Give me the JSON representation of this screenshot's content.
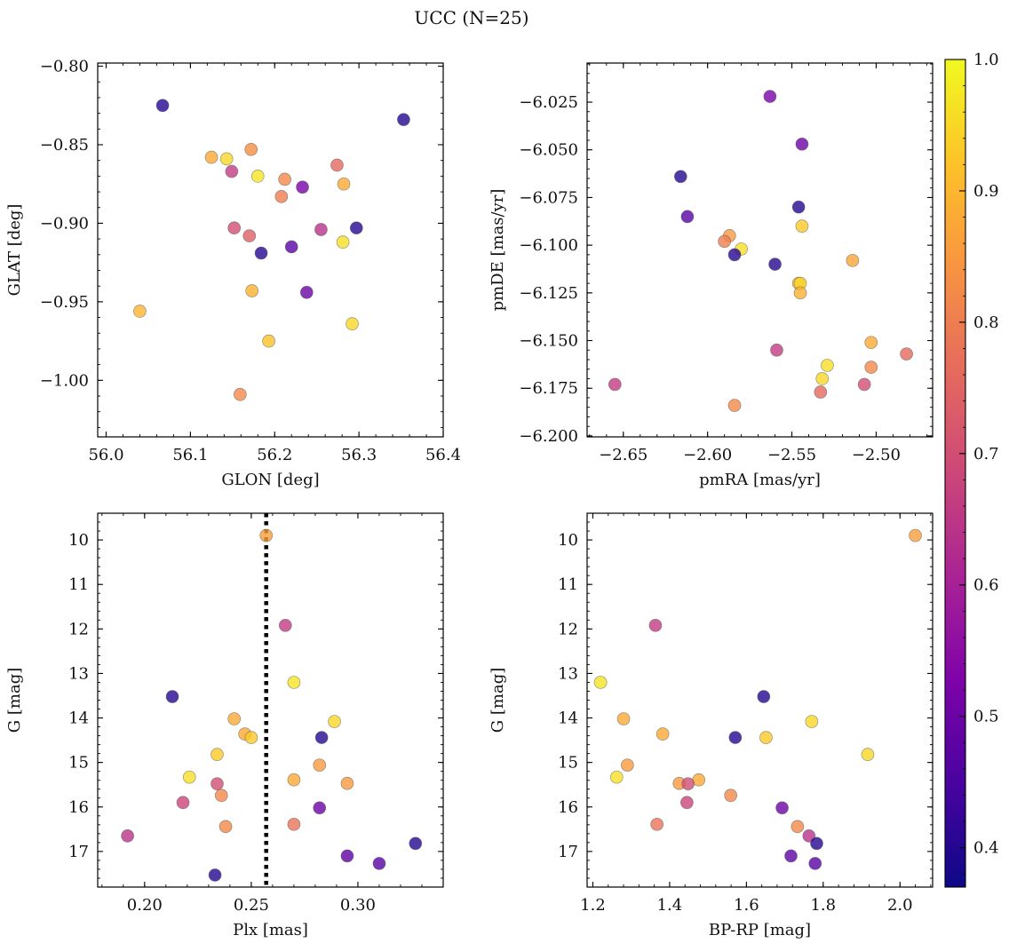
{
  "figure": {
    "suptitle": "UCC (N=25)"
  },
  "colorbar": {
    "colormap": "plasma",
    "range": [
      0.37,
      1.0
    ],
    "ticks": [
      0.4,
      0.5,
      0.6,
      0.7,
      0.8,
      0.9,
      1.0
    ],
    "tick_labels": [
      "0.4",
      "0.5",
      "0.6",
      "0.7",
      "0.8",
      "0.9",
      "1.0"
    ]
  },
  "chart_data": [
    {
      "type": "scatter",
      "id": "glon-glat",
      "xlabel": "GLON [deg]",
      "ylabel": "GLAT [deg]",
      "xlim": [
        55.99,
        56.4
      ],
      "ylim": [
        -1.036,
        -0.798
      ],
      "xticks": [
        56.0,
        56.1,
        56.2,
        56.3,
        56.4
      ],
      "xtick_labels": [
        "56.0",
        "56.1",
        "56.2",
        "56.3",
        "56.4"
      ],
      "yticks": [
        -0.8,
        -0.85,
        -0.9,
        -0.95,
        -1.0
      ],
      "ytick_labels": [
        "−0.80",
        "−0.85",
        "−0.90",
        "−0.95",
        "−1.00"
      ],
      "points": [
        {
          "x": 56.067,
          "y": -0.825,
          "c": 0.4
        },
        {
          "x": 56.353,
          "y": -0.834,
          "c": 0.4
        },
        {
          "x": 56.125,
          "y": -0.858,
          "c": 0.88
        },
        {
          "x": 56.143,
          "y": -0.859,
          "c": 0.95
        },
        {
          "x": 56.172,
          "y": -0.853,
          "c": 0.83
        },
        {
          "x": 56.149,
          "y": -0.867,
          "c": 0.66
        },
        {
          "x": 56.18,
          "y": -0.87,
          "c": 0.97
        },
        {
          "x": 56.212,
          "y": -0.872,
          "c": 0.82
        },
        {
          "x": 56.274,
          "y": -0.863,
          "c": 0.76
        },
        {
          "x": 56.233,
          "y": -0.877,
          "c": 0.52
        },
        {
          "x": 56.282,
          "y": -0.875,
          "c": 0.88
        },
        {
          "x": 56.208,
          "y": -0.883,
          "c": 0.8
        },
        {
          "x": 56.152,
          "y": -0.903,
          "c": 0.7
        },
        {
          "x": 56.17,
          "y": -0.908,
          "c": 0.74
        },
        {
          "x": 56.255,
          "y": -0.904,
          "c": 0.64
        },
        {
          "x": 56.297,
          "y": -0.903,
          "c": 0.4
        },
        {
          "x": 56.22,
          "y": -0.915,
          "c": 0.47
        },
        {
          "x": 56.184,
          "y": -0.919,
          "c": 0.4
        },
        {
          "x": 56.281,
          "y": -0.912,
          "c": 0.96
        },
        {
          "x": 56.173,
          "y": -0.943,
          "c": 0.89
        },
        {
          "x": 56.238,
          "y": -0.944,
          "c": 0.5
        },
        {
          "x": 56.04,
          "y": -0.956,
          "c": 0.9
        },
        {
          "x": 56.292,
          "y": -0.964,
          "c": 0.95
        },
        {
          "x": 56.193,
          "y": -0.975,
          "c": 0.92
        },
        {
          "x": 56.159,
          "y": -1.009,
          "c": 0.82
        }
      ]
    },
    {
      "type": "scatter",
      "id": "pmra-pmde",
      "xlabel": "pmRA [mas/yr]",
      "ylabel": "pmDE [mas/yr]",
      "xlim": [
        -2.6715,
        -2.4665
      ],
      "ylim": [
        -6.2005,
        -6.0045
      ],
      "xticks": [
        -2.65,
        -2.6,
        -2.55,
        -2.5
      ],
      "xtick_labels": [
        "−2.65",
        "−2.60",
        "−2.55",
        "−2.50"
      ],
      "yticks": [
        -6.025,
        -6.05,
        -6.075,
        -6.1,
        -6.125,
        -6.15,
        -6.175,
        -6.2
      ],
      "ytick_labels": [
        "−6.025",
        "−6.050",
        "−6.075",
        "−6.100",
        "−6.125",
        "−6.150",
        "−6.175",
        "−6.200"
      ],
      "points": [
        {
          "x": -2.563,
          "y": -6.022,
          "c": 0.52
        },
        {
          "x": -2.544,
          "y": -6.047,
          "c": 0.5
        },
        {
          "x": -2.616,
          "y": -6.064,
          "c": 0.4
        },
        {
          "x": -2.546,
          "y": -6.08,
          "c": 0.4
        },
        {
          "x": -2.612,
          "y": -6.085,
          "c": 0.47
        },
        {
          "x": -2.544,
          "y": -6.09,
          "c": 0.93
        },
        {
          "x": -2.587,
          "y": -6.095,
          "c": 0.85
        },
        {
          "x": -2.59,
          "y": -6.098,
          "c": 0.8
        },
        {
          "x": -2.58,
          "y": -6.102,
          "c": 0.96
        },
        {
          "x": -2.584,
          "y": -6.105,
          "c": 0.4
        },
        {
          "x": -2.514,
          "y": -6.108,
          "c": 0.87
        },
        {
          "x": -2.56,
          "y": -6.11,
          "c": 0.4
        },
        {
          "x": -2.546,
          "y": -6.12,
          "c": 0.9
        },
        {
          "x": -2.545,
          "y": -6.12,
          "c": 0.95
        },
        {
          "x": -2.545,
          "y": -6.125,
          "c": 0.89
        },
        {
          "x": -2.503,
          "y": -6.151,
          "c": 0.88
        },
        {
          "x": -2.559,
          "y": -6.155,
          "c": 0.66
        },
        {
          "x": -2.482,
          "y": -6.157,
          "c": 0.76
        },
        {
          "x": -2.529,
          "y": -6.163,
          "c": 0.96
        },
        {
          "x": -2.503,
          "y": -6.164,
          "c": 0.82
        },
        {
          "x": -2.532,
          "y": -6.17,
          "c": 0.95
        },
        {
          "x": -2.655,
          "y": -6.173,
          "c": 0.66
        },
        {
          "x": -2.507,
          "y": -6.173,
          "c": 0.7
        },
        {
          "x": -2.533,
          "y": -6.177,
          "c": 0.76
        },
        {
          "x": -2.584,
          "y": -6.184,
          "c": 0.82
        }
      ]
    },
    {
      "type": "scatter",
      "id": "plx-g",
      "xlabel": "Plx [mas]",
      "ylabel": "G [mag]",
      "xlim": [
        0.178,
        0.34
      ],
      "ylim": [
        17.8,
        9.4
      ],
      "y_inverted": true,
      "vline_x": 0.257,
      "xticks": [
        0.2,
        0.25,
        0.3
      ],
      "xtick_labels": [
        "0.20",
        "0.25",
        "0.30"
      ],
      "yticks": [
        10,
        11,
        12,
        13,
        14,
        15,
        16,
        17
      ],
      "ytick_labels": [
        "10",
        "11",
        "12",
        "13",
        "14",
        "15",
        "16",
        "17"
      ],
      "points": [
        {
          "x": 0.257,
          "y": 9.9,
          "c": 0.86
        },
        {
          "x": 0.266,
          "y": 11.92,
          "c": 0.66
        },
        {
          "x": 0.27,
          "y": 13.2,
          "c": 0.97
        },
        {
          "x": 0.213,
          "y": 13.52,
          "c": 0.4
        },
        {
          "x": 0.242,
          "y": 14.02,
          "c": 0.88
        },
        {
          "x": 0.289,
          "y": 14.08,
          "c": 0.95
        },
        {
          "x": 0.247,
          "y": 14.36,
          "c": 0.88
        },
        {
          "x": 0.25,
          "y": 14.44,
          "c": 0.93
        },
        {
          "x": 0.283,
          "y": 14.44,
          "c": 0.4
        },
        {
          "x": 0.234,
          "y": 14.82,
          "c": 0.93
        },
        {
          "x": 0.282,
          "y": 15.06,
          "c": 0.85
        },
        {
          "x": 0.221,
          "y": 15.33,
          "c": 0.96
        },
        {
          "x": 0.27,
          "y": 15.39,
          "c": 0.88
        },
        {
          "x": 0.295,
          "y": 15.47,
          "c": 0.85
        },
        {
          "x": 0.234,
          "y": 15.48,
          "c": 0.7
        },
        {
          "x": 0.236,
          "y": 15.74,
          "c": 0.82
        },
        {
          "x": 0.218,
          "y": 15.9,
          "c": 0.68
        },
        {
          "x": 0.282,
          "y": 16.02,
          "c": 0.5
        },
        {
          "x": 0.27,
          "y": 16.39,
          "c": 0.78
        },
        {
          "x": 0.238,
          "y": 16.44,
          "c": 0.82
        },
        {
          "x": 0.192,
          "y": 16.65,
          "c": 0.64
        },
        {
          "x": 0.327,
          "y": 16.82,
          "c": 0.4
        },
        {
          "x": 0.295,
          "y": 17.1,
          "c": 0.48
        },
        {
          "x": 0.31,
          "y": 17.27,
          "c": 0.47
        },
        {
          "x": 0.233,
          "y": 17.53,
          "c": 0.4
        }
      ]
    },
    {
      "type": "scatter",
      "id": "bprp-g",
      "xlabel": "BP-RP [mag]",
      "ylabel": "G [mag]",
      "xlim": [
        1.185,
        2.085
      ],
      "ylim": [
        17.8,
        9.4
      ],
      "y_inverted": true,
      "xticks": [
        1.2,
        1.4,
        1.6,
        1.8,
        2.0
      ],
      "xtick_labels": [
        "1.2",
        "1.4",
        "1.6",
        "1.8",
        "2.0"
      ],
      "yticks": [
        10,
        11,
        12,
        13,
        14,
        15,
        16,
        17
      ],
      "ytick_labels": [
        "10",
        "11",
        "12",
        "13",
        "14",
        "15",
        "16",
        "17"
      ],
      "points": [
        {
          "x": 2.04,
          "y": 9.9,
          "c": 0.86
        },
        {
          "x": 1.363,
          "y": 11.92,
          "c": 0.66
        },
        {
          "x": 1.22,
          "y": 13.2,
          "c": 0.97
        },
        {
          "x": 1.645,
          "y": 13.52,
          "c": 0.4
        },
        {
          "x": 1.28,
          "y": 14.02,
          "c": 0.88
        },
        {
          "x": 1.77,
          "y": 14.08,
          "c": 0.95
        },
        {
          "x": 1.382,
          "y": 14.36,
          "c": 0.88
        },
        {
          "x": 1.571,
          "y": 14.44,
          "c": 0.4
        },
        {
          "x": 1.651,
          "y": 14.44,
          "c": 0.93
        },
        {
          "x": 1.916,
          "y": 14.82,
          "c": 0.95
        },
        {
          "x": 1.29,
          "y": 15.06,
          "c": 0.85
        },
        {
          "x": 1.262,
          "y": 15.33,
          "c": 0.96
        },
        {
          "x": 1.476,
          "y": 15.39,
          "c": 0.88
        },
        {
          "x": 1.425,
          "y": 15.47,
          "c": 0.85
        },
        {
          "x": 1.448,
          "y": 15.48,
          "c": 0.7
        },
        {
          "x": 1.559,
          "y": 15.74,
          "c": 0.82
        },
        {
          "x": 1.445,
          "y": 15.9,
          "c": 0.68
        },
        {
          "x": 1.693,
          "y": 16.02,
          "c": 0.5
        },
        {
          "x": 1.367,
          "y": 16.39,
          "c": 0.78
        },
        {
          "x": 1.733,
          "y": 16.44,
          "c": 0.82
        },
        {
          "x": 1.763,
          "y": 16.65,
          "c": 0.64
        },
        {
          "x": 1.783,
          "y": 16.82,
          "c": 0.4
        },
        {
          "x": 1.716,
          "y": 17.1,
          "c": 0.48
        },
        {
          "x": 1.779,
          "y": 17.27,
          "c": 0.47
        }
      ]
    }
  ]
}
